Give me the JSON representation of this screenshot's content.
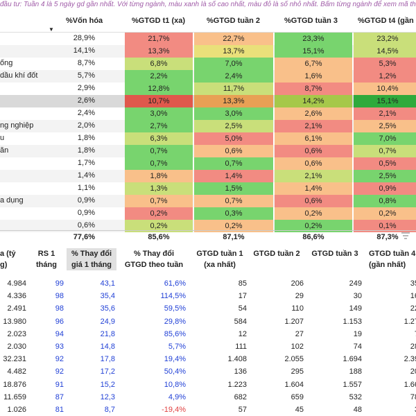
{
  "top_note": "đầu tư: Tuần 4 là 5 ngày gd gần nhất. Với từng ngành, màu xanh là số cao nhất, màu đỏ là số nhỏ nhất. Bấm từng ngành để xem mã thuộc",
  "table1": {
    "headers": [
      "%Vốn hóa",
      "%GTGD t1 (xa)",
      "%GTGD tuần 2",
      "%GTGD tuần 3",
      "%GTGD t4 (gần"
    ],
    "colors": {
      "red": "#f28b82",
      "orange": "#f9c08a",
      "yellow": "#e9e07a",
      "lightgreen": "#c9df7a",
      "green": "#78d46e",
      "darkred": "#e0584c",
      "darkorange": "#e8a055",
      "olive": "#a6c84a",
      "darkgreen": "#2faa3c"
    },
    "rows": [
      {
        "name": "",
        "vh": "28,9%",
        "cells": [
          {
            "v": "21,7%",
            "c": "red"
          },
          {
            "v": "22,7%",
            "c": "orange"
          },
          {
            "v": "23,3%",
            "c": "green"
          },
          {
            "v": "23,2%",
            "c": "lightgreen"
          }
        ]
      },
      {
        "name": "",
        "vh": "14,1%",
        "cells": [
          {
            "v": "13,3%",
            "c": "red"
          },
          {
            "v": "13,7%",
            "c": "yellow"
          },
          {
            "v": "15,1%",
            "c": "green"
          },
          {
            "v": "14,5%",
            "c": "lightgreen"
          }
        ]
      },
      {
        "name": "ống",
        "vh": "8,7%",
        "cells": [
          {
            "v": "6,8%",
            "c": "lightgreen"
          },
          {
            "v": "7,0%",
            "c": "green"
          },
          {
            "v": "6,7%",
            "c": "orange"
          },
          {
            "v": "5,3%",
            "c": "red"
          }
        ]
      },
      {
        "name": "dầu khí đốt",
        "vh": "5,7%",
        "cells": [
          {
            "v": "2,2%",
            "c": "green"
          },
          {
            "v": "2,4%",
            "c": "green"
          },
          {
            "v": "1,6%",
            "c": "orange"
          },
          {
            "v": "1,2%",
            "c": "red"
          }
        ]
      },
      {
        "name": "",
        "vh": "2,9%",
        "cells": [
          {
            "v": "12,8%",
            "c": "green"
          },
          {
            "v": "11,7%",
            "c": "lightgreen"
          },
          {
            "v": "8,7%",
            "c": "red"
          },
          {
            "v": "10,4%",
            "c": "orange"
          }
        ]
      },
      {
        "name": "",
        "vh": "2,6%",
        "cells": [
          {
            "v": "10,7%",
            "c": "darkred"
          },
          {
            "v": "13,3%",
            "c": "darkorange"
          },
          {
            "v": "14,2%",
            "c": "olive"
          },
          {
            "v": "15,1%",
            "c": "darkgreen"
          }
        ],
        "selected": true
      },
      {
        "name": "",
        "vh": "2,4%",
        "cells": [
          {
            "v": "3,0%",
            "c": "green"
          },
          {
            "v": "3,0%",
            "c": "green"
          },
          {
            "v": "2,6%",
            "c": "orange"
          },
          {
            "v": "2,1%",
            "c": "red"
          }
        ]
      },
      {
        "name": "ng nghiệp",
        "vh": "2,0%",
        "cells": [
          {
            "v": "2,7%",
            "c": "green"
          },
          {
            "v": "2,5%",
            "c": "lightgreen"
          },
          {
            "v": "2,1%",
            "c": "red"
          },
          {
            "v": "2,5%",
            "c": "orange"
          }
        ]
      },
      {
        "name": "u",
        "vh": "1,8%",
        "cells": [
          {
            "v": "6,3%",
            "c": "lightgreen"
          },
          {
            "v": "5,0%",
            "c": "red"
          },
          {
            "v": "6,1%",
            "c": "orange"
          },
          {
            "v": "7,0%",
            "c": "green"
          }
        ]
      },
      {
        "name": "ăn",
        "vh": "1,8%",
        "cells": [
          {
            "v": "0,7%",
            "c": "green"
          },
          {
            "v": "0,6%",
            "c": "orange"
          },
          {
            "v": "0,6%",
            "c": "red"
          },
          {
            "v": "0,7%",
            "c": "lightgreen"
          }
        ]
      },
      {
        "name": "",
        "vh": "1,7%",
        "cells": [
          {
            "v": "0,7%",
            "c": "green"
          },
          {
            "v": "0,7%",
            "c": "green"
          },
          {
            "v": "0,6%",
            "c": "orange"
          },
          {
            "v": "0,5%",
            "c": "red"
          }
        ]
      },
      {
        "name": "",
        "vh": "1,4%",
        "cells": [
          {
            "v": "1,8%",
            "c": "orange"
          },
          {
            "v": "1,4%",
            "c": "red"
          },
          {
            "v": "2,1%",
            "c": "lightgreen"
          },
          {
            "v": "2,5%",
            "c": "green"
          }
        ]
      },
      {
        "name": "",
        "vh": "1,1%",
        "cells": [
          {
            "v": "1,3%",
            "c": "lightgreen"
          },
          {
            "v": "1,5%",
            "c": "green"
          },
          {
            "v": "1,4%",
            "c": "orange"
          },
          {
            "v": "0,9%",
            "c": "red"
          }
        ]
      },
      {
        "name": "a dụng",
        "vh": "0,9%",
        "cells": [
          {
            "v": "0,7%",
            "c": "orange"
          },
          {
            "v": "0,7%",
            "c": "orange"
          },
          {
            "v": "0,6%",
            "c": "red"
          },
          {
            "v": "0,8%",
            "c": "green"
          }
        ]
      },
      {
        "name": "",
        "vh": "0,9%",
        "cells": [
          {
            "v": "0,2%",
            "c": "red"
          },
          {
            "v": "0,3%",
            "c": "green"
          },
          {
            "v": "0,2%",
            "c": "orange"
          },
          {
            "v": "0,2%",
            "c": "orange"
          }
        ]
      },
      {
        "name": "",
        "vh": "0,6%",
        "cells": [
          {
            "v": "0,2%",
            "c": "lightgreen"
          },
          {
            "v": "0,2%",
            "c": "orange"
          },
          {
            "v": "0,2%",
            "c": "green"
          },
          {
            "v": "0,1%",
            "c": "red"
          }
        ]
      }
    ],
    "total": {
      "vh": "77,6%",
      "c1": "85,6%",
      "c2": "87,1%",
      "c3": "86,6%",
      "c4": "87,3%"
    }
  },
  "table2": {
    "headers": {
      "h0": [
        "a (tỷ",
        "g)"
      ],
      "h1": [
        "RS 1",
        "tháng"
      ],
      "h2": [
        "% Thay đổi",
        "giá 1 tháng"
      ],
      "h3": [
        "% Thay đổi",
        "GTGD theo tuần"
      ],
      "h4": [
        "GTGD tuần 1",
        "(xa nhất)"
      ],
      "h5": [
        "GTGD tuần 2"
      ],
      "h6": [
        "GTGD tuần 3"
      ],
      "h7": [
        "GTGD tuần 4",
        "(gần nhất)"
      ]
    },
    "rows": [
      {
        "a": "4.984",
        "rs": "99",
        "p": "43,1",
        "g": "61,6%",
        "t1": "85",
        "t2": "206",
        "t3": "249",
        "t4": "35"
      },
      {
        "a": "4.336",
        "rs": "98",
        "p": "35,4",
        "g": "114,5%",
        "t1": "17",
        "t2": "29",
        "t3": "30",
        "t4": "16"
      },
      {
        "a": "2.491",
        "rs": "98",
        "p": "35,6",
        "g": "59,5%",
        "t1": "54",
        "t2": "110",
        "t3": "149",
        "t4": "22"
      },
      {
        "a": "13.980",
        "rs": "96",
        "p": "24,9",
        "g": "29,8%",
        "t1": "584",
        "t2": "1.207",
        "t3": "1.153",
        "t4": "1.27"
      },
      {
        "a": "2.023",
        "rs": "94",
        "p": "21,8",
        "g": "85,6%",
        "t1": "12",
        "t2": "27",
        "t3": "19",
        "t4": "7"
      },
      {
        "a": "2.030",
        "rs": "93",
        "p": "14,8",
        "g": "5,7%",
        "t1": "111",
        "t2": "102",
        "t3": "74",
        "t4": "28"
      },
      {
        "a": "32.231",
        "rs": "92",
        "p": "17,8",
        "g": "19,4%",
        "t1": "1.408",
        "t2": "2.055",
        "t3": "1.694",
        "t4": "2.39"
      },
      {
        "a": "4.482",
        "rs": "92",
        "p": "17,2",
        "g": "50,4%",
        "t1": "136",
        "t2": "295",
        "t3": "188",
        "t4": "20"
      },
      {
        "a": "18.876",
        "rs": "91",
        "p": "15,2",
        "g": "10,8%",
        "t1": "1.223",
        "t2": "1.604",
        "t3": "1.557",
        "t4": "1.66"
      },
      {
        "a": "11.659",
        "rs": "87",
        "p": "12,3",
        "g": "4,9%",
        "t1": "682",
        "t2": "659",
        "t3": "532",
        "t4": "78"
      },
      {
        "a": "1.026",
        "rs": "81",
        "p": "8,7",
        "g": "-19,4%",
        "t1": "57",
        "t2": "45",
        "t3": "48",
        "t4": "3"
      }
    ]
  }
}
